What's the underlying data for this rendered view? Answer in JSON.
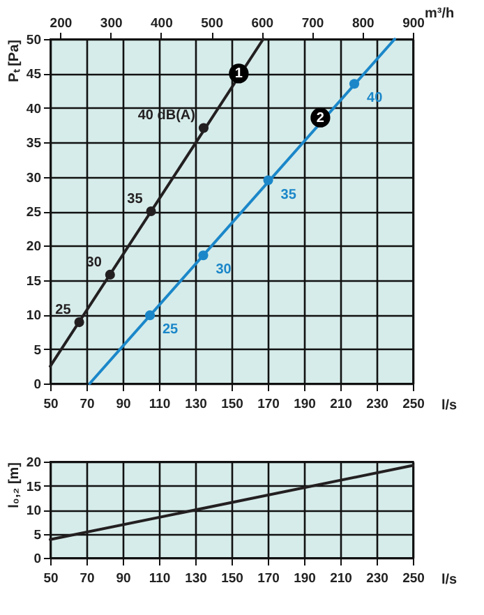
{
  "chart_data": [
    {
      "type": "line",
      "xlabel": "l/s",
      "ylabel": "Pₜ [Pa]",
      "x2label": "m³/h",
      "xlim": [
        50,
        250
      ],
      "xticks": [
        50,
        70,
        90,
        110,
        130,
        150,
        170,
        190,
        210,
        230,
        250
      ],
      "x2lim": [
        180,
        900
      ],
      "x2ticks": [
        200,
        300,
        400,
        500,
        600,
        700,
        800,
        900
      ],
      "ylim": [
        0,
        50
      ],
      "yticks": [
        0,
        5,
        10,
        15,
        20,
        25,
        30,
        35,
        40,
        45,
        50
      ],
      "grid": true,
      "series": [
        {
          "color": "#231f20",
          "x": [
            50,
            167.5
          ],
          "values": [
            2.5,
            50
          ]
        },
        {
          "type": "scatter",
          "marker": "circle",
          "color": "#231f20",
          "x": [
            66,
            83,
            105.6,
            134.6
          ],
          "values": [
            8.9,
            15.8,
            25,
            37.1
          ]
        },
        {
          "color": "#1b87c9",
          "x": [
            71.8,
            240
          ],
          "values": [
            0,
            50
          ]
        },
        {
          "type": "scatter",
          "marker": "circle",
          "color": "#1b87c9",
          "x": [
            105,
            134.4,
            170.2,
            217.7
          ],
          "values": [
            9.9,
            18.6,
            29.5,
            43.5
          ]
        }
      ],
      "annotations": [
        {
          "text": "25",
          "x": 66,
          "y": 8.9
        },
        {
          "text": "30",
          "x": 83,
          "y": 15.8
        },
        {
          "text": "35",
          "x": 105.6,
          "y": 25
        },
        {
          "text": "40 dB(A)",
          "x": 134.6,
          "y": 37.1
        },
        {
          "text": "25",
          "x": 105,
          "y": 9.9
        },
        {
          "text": "30",
          "x": 134.4,
          "y": 18.6
        },
        {
          "text": "35",
          "x": 170.2,
          "y": 29.5
        },
        {
          "text": "40",
          "x": 217.7,
          "y": 43.5
        },
        {
          "text": "1",
          "x": 154,
          "y": 45
        },
        {
          "text": "2",
          "x": 199,
          "y": 38.6
        }
      ]
    },
    {
      "type": "line",
      "xlabel": "l/s",
      "ylabel": "l₀,₂ [m]",
      "xlim": [
        50,
        250
      ],
      "xticks": [
        50,
        70,
        90,
        110,
        130,
        150,
        170,
        190,
        210,
        230,
        250
      ],
      "ylim": [
        0,
        20
      ],
      "yticks": [
        0,
        5,
        10,
        15,
        20
      ],
      "grid": true,
      "series": [
        {
          "color": "#231f20",
          "x": [
            50,
            250
          ],
          "values": [
            3.8,
            19.2
          ]
        }
      ]
    }
  ]
}
